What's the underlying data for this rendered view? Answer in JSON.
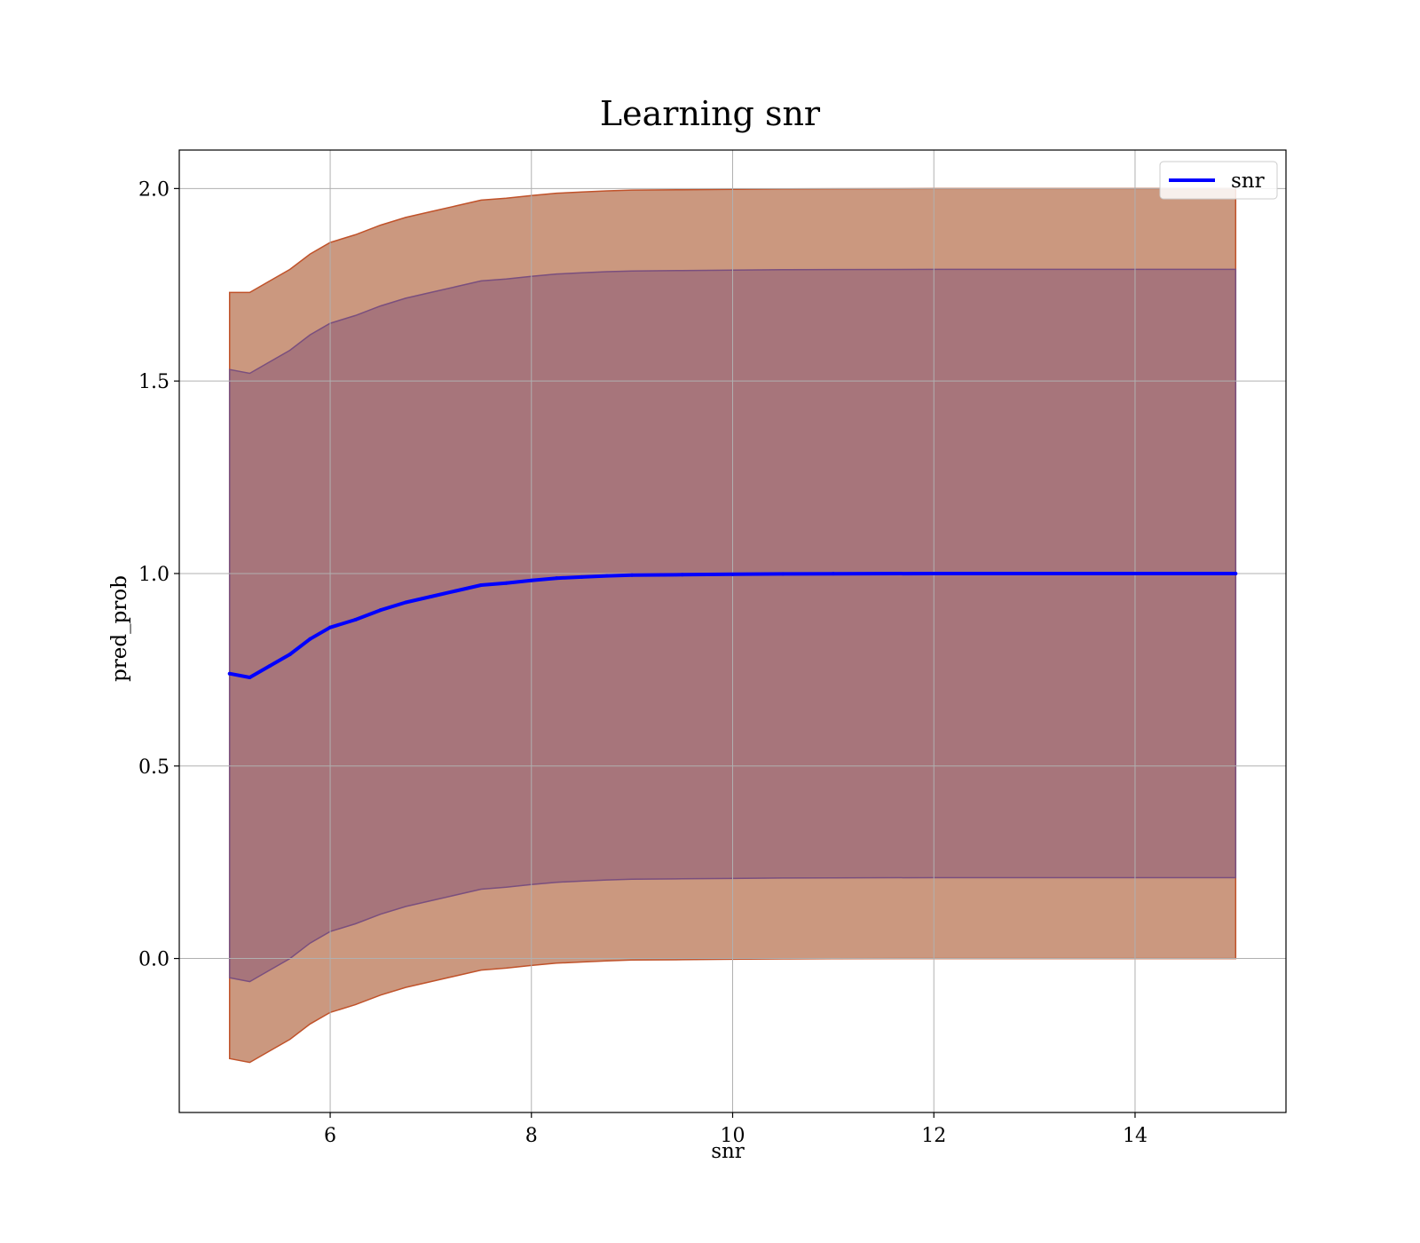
{
  "chart_data": {
    "type": "line",
    "title": "Learning snr",
    "xlabel": "snr",
    "ylabel": "pred_prob",
    "xlim": [
      4.5,
      15.5
    ],
    "ylim": [
      -0.4,
      2.1
    ],
    "xticks": [
      6,
      8,
      10,
      12,
      14
    ],
    "xtick_labels": [
      "6",
      "8",
      "10",
      "12",
      "14"
    ],
    "yticks": [
      0.0,
      0.5,
      1.0,
      1.5,
      2.0
    ],
    "ytick_labels": [
      "0.0",
      "0.5",
      "1.0",
      "1.5",
      "2.0"
    ],
    "grid": true,
    "legend": {
      "position": "top-right",
      "entries": [
        "snr"
      ]
    },
    "series": [
      {
        "name": "snr",
        "color": "#0000ff",
        "x": [
          5.0,
          5.2,
          5.4,
          5.6,
          5.8,
          6.0,
          6.25,
          6.5,
          6.75,
          7.0,
          7.25,
          7.5,
          7.75,
          8.0,
          8.25,
          8.5,
          8.75,
          9.0,
          9.5,
          10.0,
          10.5,
          11.0,
          12.0,
          13.0,
          14.0,
          15.0
        ],
        "y": [
          0.74,
          0.73,
          0.76,
          0.79,
          0.83,
          0.86,
          0.88,
          0.905,
          0.925,
          0.94,
          0.955,
          0.97,
          0.975,
          0.982,
          0.988,
          0.991,
          0.994,
          0.996,
          0.997,
          0.998,
          0.999,
          0.9995,
          1.0,
          1.0,
          1.0,
          1.0
        ]
      }
    ],
    "bands": [
      {
        "color": "#c28669",
        "edge": "#c0522a",
        "opacity": 0.85,
        "upper": [
          1.73,
          1.73,
          1.76,
          1.79,
          1.83,
          1.86,
          1.88,
          1.905,
          1.925,
          1.94,
          1.955,
          1.97,
          1.975,
          1.982,
          1.988,
          1.991,
          1.994,
          1.996,
          1.997,
          1.998,
          1.999,
          1.9995,
          2.0,
          2.0,
          2.0,
          2.0
        ],
        "lower": [
          -0.26,
          -0.27,
          -0.24,
          -0.21,
          -0.17,
          -0.14,
          -0.12,
          -0.095,
          -0.075,
          -0.06,
          -0.045,
          -0.03,
          -0.025,
          -0.018,
          -0.012,
          -0.009,
          -0.006,
          -0.004,
          -0.003,
          -0.002,
          -0.001,
          -0.0005,
          0.0,
          0.0,
          0.0,
          0.0
        ]
      },
      {
        "color": "#8a5a78",
        "edge": "#7a4f7e",
        "opacity": 0.55,
        "upper": [
          1.53,
          1.52,
          1.55,
          1.58,
          1.62,
          1.65,
          1.67,
          1.695,
          1.715,
          1.73,
          1.745,
          1.76,
          1.765,
          1.772,
          1.778,
          1.781,
          1.784,
          1.786,
          1.787,
          1.788,
          1.789,
          1.7895,
          1.79,
          1.79,
          1.79,
          1.79
        ],
        "lower": [
          -0.05,
          -0.06,
          -0.03,
          0.0,
          0.04,
          0.07,
          0.09,
          0.115,
          0.135,
          0.15,
          0.165,
          0.18,
          0.185,
          0.192,
          0.198,
          0.201,
          0.204,
          0.206,
          0.207,
          0.208,
          0.209,
          0.2095,
          0.21,
          0.21,
          0.21,
          0.21
        ]
      }
    ]
  }
}
